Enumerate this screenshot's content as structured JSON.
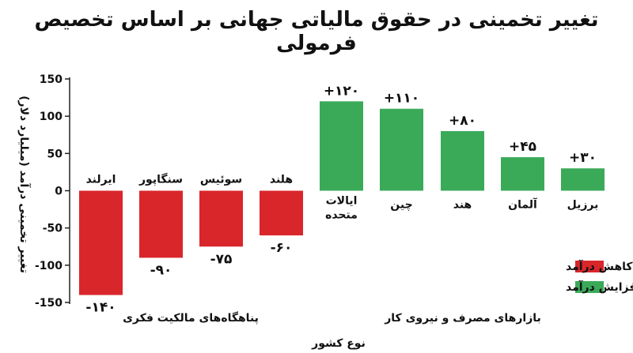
{
  "chart_data": {
    "type": "bar",
    "title": "تغییر تخمینی در حقوق مالیاتی جهانی بر اساس تخصیص فرمولی",
    "xlabel": "نوع کشور",
    "ylabel": "تغییر تخمینی درآمد (میلیارد دلار)",
    "ylim": [
      -150,
      150
    ],
    "yticks": [
      150,
      100,
      50,
      0,
      -50,
      -100,
      -150
    ],
    "ytick_labels": [
      "150",
      "100",
      "50",
      "0",
      "-50",
      "-100",
      "-150"
    ],
    "categories": [
      "ایرلند",
      "سنگاپور",
      "سوئیس",
      "هلند",
      "ایالات متحده",
      "چین",
      "هند",
      "آلمان",
      "برزیل"
    ],
    "values": [
      -140,
      -90,
      -75,
      -60,
      120,
      110,
      80,
      45,
      30
    ],
    "value_labels": [
      "-۱۴۰",
      "-۹۰",
      "-۷۵",
      "-۶۰",
      "+۱۲۰",
      "+۱۱۰",
      "+۸۰",
      "+۴۵",
      "+۳۰"
    ],
    "bar_series": [
      0,
      0,
      0,
      0,
      1,
      1,
      1,
      1,
      1
    ],
    "groups": [
      {
        "label": "پناهگاه‌های مالکیت فکری",
        "from": 0,
        "to": 3
      },
      {
        "label": "بازارهای مصرف و نیروی کار",
        "from": 4,
        "to": 8
      }
    ],
    "series": [
      {
        "name": "کاهش درآمد",
        "color": "#d9262b"
      },
      {
        "name": "افزایش درآمد",
        "color": "#3aaa59"
      }
    ],
    "legend_position": "bottom-right",
    "grid": false
  }
}
